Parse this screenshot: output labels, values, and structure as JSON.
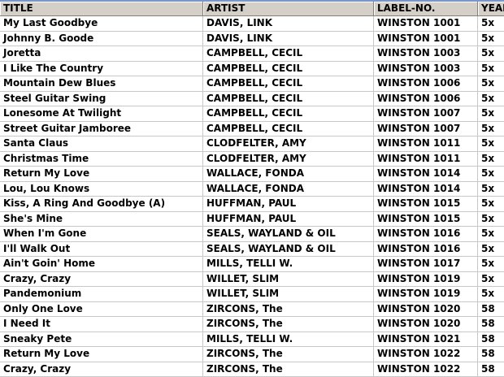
{
  "columns": [
    "TITLE",
    "ARTIST",
    "LABEL-NO.",
    "YEAR"
  ],
  "rows": [
    [
      "My Last Goodbye",
      "DAVIS, LINK",
      "WINSTON 1001",
      "5x"
    ],
    [
      "Johnny B. Goode",
      "DAVIS, LINK",
      "WINSTON 1001",
      "5x"
    ],
    [
      "Joretta",
      "CAMPBELL, CECIL",
      "WINSTON 1003",
      "5x"
    ],
    [
      "I Like The Country",
      "CAMPBELL, CECIL",
      "WINSTON 1003",
      "5x"
    ],
    [
      "Mountain Dew Blues",
      "CAMPBELL, CECIL",
      "WINSTON 1006",
      "5x"
    ],
    [
      "Steel Guitar Swing",
      "CAMPBELL, CECIL",
      "WINSTON 1006",
      "5x"
    ],
    [
      "Lonesome At Twilight",
      "CAMPBELL, CECIL",
      "WINSTON 1007",
      "5x"
    ],
    [
      "Street Guitar Jamboree",
      "CAMPBELL, CECIL",
      "WINSTON 1007",
      "5x"
    ],
    [
      "Santa Claus",
      "CLODFELTER, AMY",
      "WINSTON 1011",
      "5x"
    ],
    [
      "Christmas Time",
      "CLODFELTER, AMY",
      "WINSTON 1011",
      "5x"
    ],
    [
      "Return My Love",
      "WALLACE, FONDA",
      "WINSTON 1014",
      "5x"
    ],
    [
      "Lou, Lou Knows",
      "WALLACE, FONDA",
      "WINSTON 1014",
      "5x"
    ],
    [
      "Kiss, A Ring And Goodbye (A)",
      "HUFFMAN, PAUL",
      "WINSTON 1015",
      "5x"
    ],
    [
      "She's Mine",
      "HUFFMAN, PAUL",
      "WINSTON 1015",
      "5x"
    ],
    [
      "When I'm Gone",
      "SEALS, WAYLAND & OIL",
      "WINSTON 1016",
      "5x"
    ],
    [
      "I'll Walk Out",
      "SEALS, WAYLAND & OIL",
      "WINSTON 1016",
      "5x"
    ],
    [
      "Ain't Goin' Home",
      "MILLS, TELLI W.",
      "WINSTON 1017",
      "5x"
    ],
    [
      "Crazy, Crazy",
      "WILLET, SLIM",
      "WINSTON 1019",
      "5x"
    ],
    [
      "Pandemonium",
      "WILLET, SLIM",
      "WINSTON 1019",
      "5x"
    ],
    [
      "Only One Love",
      "ZIRCONS, The",
      "WINSTON 1020",
      "58"
    ],
    [
      "I Need It",
      "ZIRCONS, The",
      "WINSTON 1020",
      "58"
    ],
    [
      "Sneaky Pete",
      "MILLS, TELLI W.",
      "WINSTON 1021",
      "58"
    ],
    [
      "Return My Love",
      "ZIRCONS, The",
      "WINSTON 1022",
      "58"
    ],
    [
      "Crazy, Crazy",
      "ZIRCONS, The",
      "WINSTON 1022",
      "58"
    ]
  ]
}
